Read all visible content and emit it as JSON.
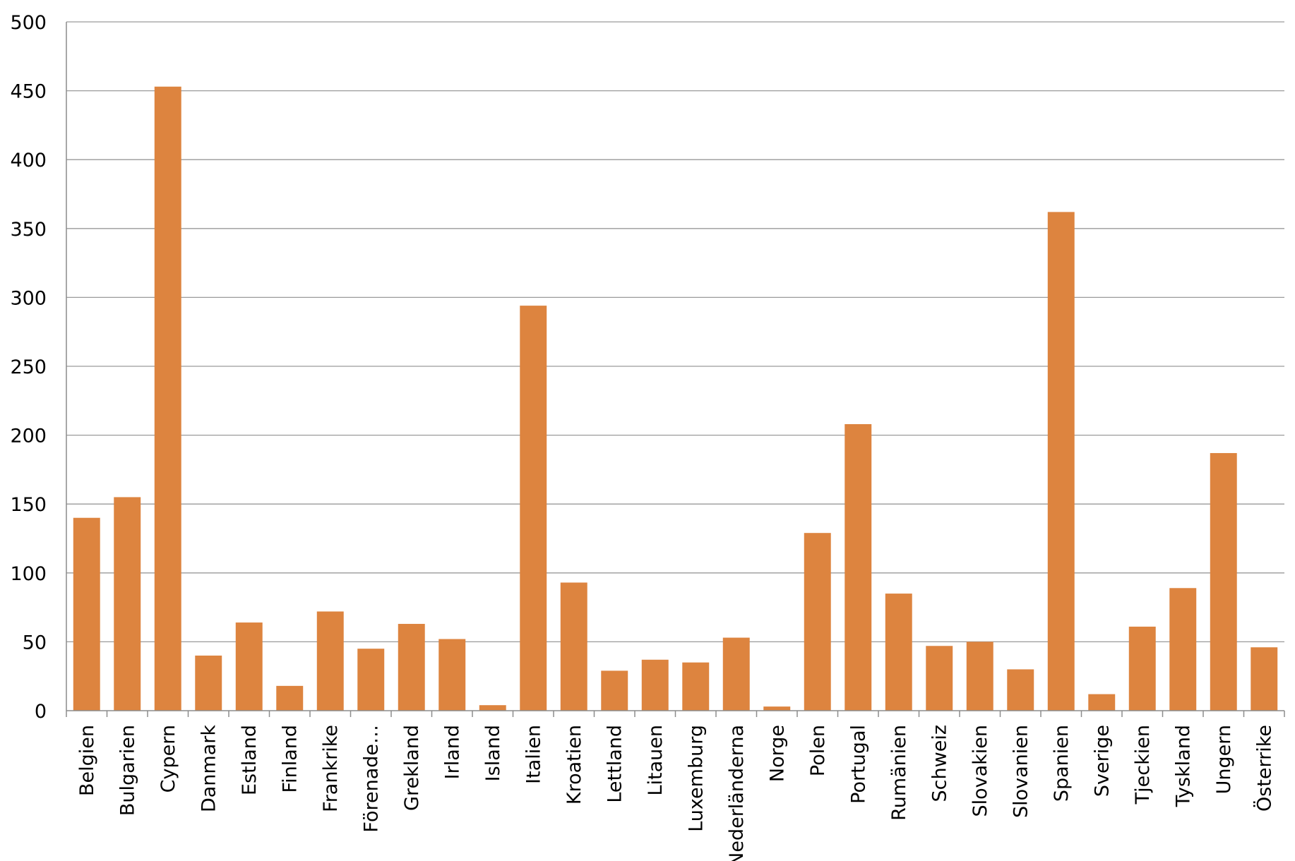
{
  "chart_data": {
    "type": "bar",
    "title": "",
    "xlabel": "",
    "ylabel": "",
    "ylim": [
      0,
      500
    ],
    "yticks": [
      0,
      50,
      100,
      150,
      200,
      250,
      300,
      350,
      400,
      450,
      500
    ],
    "grid": true,
    "legend": "none",
    "bar_color": "#dd843f",
    "categories": [
      "Belgien",
      "Bulgarien",
      "Cypern",
      "Danmark",
      "Estland",
      "Finland",
      "Frankrike",
      "Förenade…",
      "Grekland",
      "Irland",
      "Island",
      "Italien",
      "Kroatien",
      "Lettland",
      "Litauen",
      "Luxemburg",
      "Nederländerna",
      "Norge",
      "Polen",
      "Portugal",
      "Rumänien",
      "Schweiz",
      "Slovakien",
      "Slovanien",
      "Spanien",
      "Sverige",
      "Tjeckien",
      "Tyskland",
      "Ungern",
      "Österrike"
    ],
    "values": [
      140,
      155,
      453,
      40,
      64,
      18,
      72,
      45,
      63,
      52,
      4,
      294,
      93,
      29,
      37,
      35,
      53,
      3,
      129,
      208,
      85,
      47,
      50,
      30,
      362,
      12,
      61,
      89,
      187,
      46
    ]
  }
}
